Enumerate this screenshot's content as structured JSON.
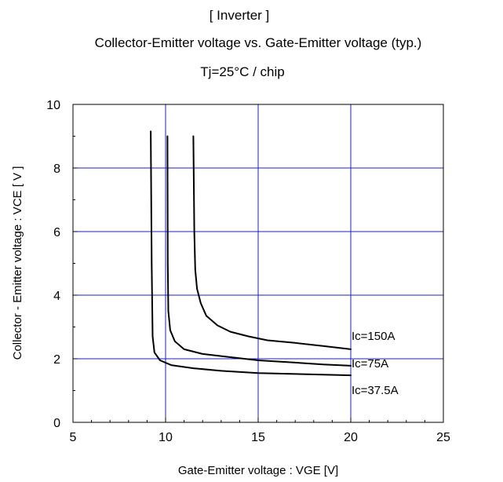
{
  "chart_data": {
    "type": "line",
    "title_lines": [
      "[ Inverter ]",
      "Collector-Emitter voltage  vs. Gate-Emitter voltage (typ.)",
      "Tj=25°C / chip"
    ],
    "xlabel": "Gate-Emitter voltage : VGE [V]",
    "ylabel": "Collector - Emitter voltage  :  VCE  [ V ]",
    "xlim": [
      5,
      25
    ],
    "ylim": [
      0,
      10
    ],
    "x_ticks": [
      5,
      10,
      15,
      20,
      25
    ],
    "y_ticks": [
      0,
      2,
      4,
      6,
      8,
      10
    ],
    "grid": true,
    "grid_color": "#1f1fbf",
    "line_color": "#000000",
    "series": [
      {
        "name": "Ic=150A",
        "points": [
          [
            11.5,
            9.0
          ],
          [
            11.55,
            6.0
          ],
          [
            11.6,
            4.8
          ],
          [
            11.7,
            4.2
          ],
          [
            11.9,
            3.75
          ],
          [
            12.2,
            3.35
          ],
          [
            12.8,
            3.05
          ],
          [
            13.5,
            2.85
          ],
          [
            14.5,
            2.7
          ],
          [
            15.5,
            2.58
          ],
          [
            17.0,
            2.5
          ],
          [
            18.5,
            2.4
          ],
          [
            20.0,
            2.3
          ]
        ]
      },
      {
        "name": "Ic=75A",
        "points": [
          [
            10.1,
            9.0
          ],
          [
            10.12,
            5.0
          ],
          [
            10.15,
            3.5
          ],
          [
            10.25,
            2.9
          ],
          [
            10.5,
            2.55
          ],
          [
            11.0,
            2.3
          ],
          [
            12.0,
            2.15
          ],
          [
            13.5,
            2.05
          ],
          [
            15.0,
            1.95
          ],
          [
            17.0,
            1.88
          ],
          [
            18.5,
            1.82
          ],
          [
            20.0,
            1.78
          ]
        ]
      },
      {
        "name": "Ic=37.5A",
        "points": [
          [
            9.2,
            9.15
          ],
          [
            9.25,
            5.0
          ],
          [
            9.3,
            2.7
          ],
          [
            9.4,
            2.2
          ],
          [
            9.7,
            1.95
          ],
          [
            10.3,
            1.8
          ],
          [
            11.5,
            1.7
          ],
          [
            13.0,
            1.62
          ],
          [
            15.0,
            1.55
          ],
          [
            17.0,
            1.52
          ],
          [
            20.0,
            1.48
          ]
        ]
      }
    ]
  }
}
